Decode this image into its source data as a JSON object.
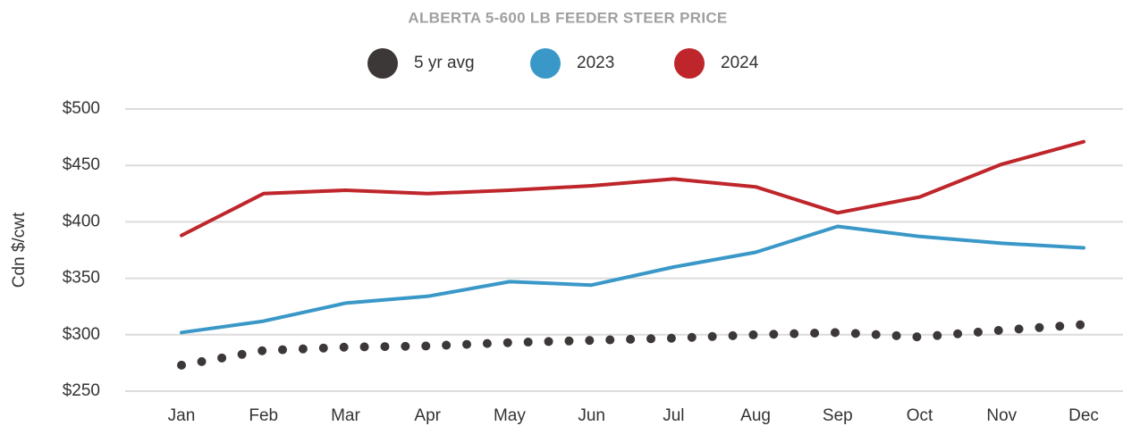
{
  "chart_data": {
    "type": "line",
    "title": "ALBERTA 5-600 LB FEEDER STEER PRICE",
    "y_label": "Cdn $/cwt",
    "categories": [
      "Jan",
      "Feb",
      "Mar",
      "Apr",
      "May",
      "Jun",
      "Jul",
      "Aug",
      "Sep",
      "Oct",
      "Nov",
      "Dec"
    ],
    "series": [
      {
        "name": "5 yr avg",
        "color": "#3d3838",
        "line_style": "dotted",
        "values": [
          273,
          286,
          289,
          290,
          293,
          295,
          297,
          300,
          302,
          298,
          304,
          309
        ]
      },
      {
        "name": "2023",
        "color": "#3a98c8",
        "line_style": "solid",
        "values": [
          302,
          312,
          328,
          334,
          347,
          344,
          360,
          373,
          396,
          387,
          381,
          377
        ]
      },
      {
        "name": "2024",
        "color": "#bf262b",
        "line_style": "solid",
        "values": [
          388,
          425,
          428,
          425,
          428,
          432,
          438,
          431,
          408,
          422,
          451,
          471
        ]
      }
    ],
    "ylim": [
      250,
      500
    ],
    "yticks": [
      {
        "value": 250,
        "label": "$250"
      },
      {
        "value": 300,
        "label": "$300"
      },
      {
        "value": 350,
        "label": "$350"
      },
      {
        "value": 400,
        "label": "$400"
      },
      {
        "value": 450,
        "label": "$450"
      },
      {
        "value": 500,
        "label": "$500"
      }
    ],
    "grid": true,
    "legend": "top"
  }
}
